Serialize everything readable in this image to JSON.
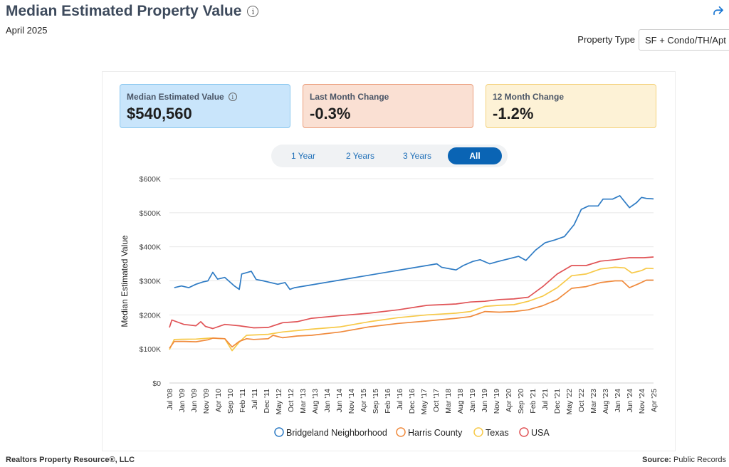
{
  "header": {
    "title": "Median Estimated Property Value",
    "subtitle": "April 2025",
    "share_icon": "share-icon"
  },
  "filter": {
    "label": "Property Type",
    "value": "SF + Condo/TH/Apt"
  },
  "cards": [
    {
      "label": "Median Estimated Value",
      "value": "$540,560",
      "color": "#c9e5fb"
    },
    {
      "label": "Last Month Change",
      "value": "-0.3%",
      "color": "#fae0d3"
    },
    {
      "label": "12 Month Change",
      "value": "-1.2%",
      "color": "#fdf2d6"
    }
  ],
  "tabs": [
    {
      "label": "1 Year",
      "active": false
    },
    {
      "label": "2 Years",
      "active": false
    },
    {
      "label": "3 Years",
      "active": false
    },
    {
      "label": "All",
      "active": true
    }
  ],
  "footer": {
    "left": "Realtors Property Resource®, LLC",
    "source_label": "Source:",
    "source_value": "Public Records"
  },
  "chart_data": {
    "type": "line",
    "ylabel": "Median Estimated Value",
    "xlabel": "",
    "ylim": [
      0,
      600000
    ],
    "y_ticks": [
      0,
      100000,
      200000,
      300000,
      400000,
      500000,
      600000
    ],
    "y_tick_labels": [
      "$0",
      "$100K",
      "$200K",
      "$300K",
      "$400K",
      "$500K",
      "$600K"
    ],
    "x_range": [
      "2008-07",
      "2025-04"
    ],
    "x_tick_labels": [
      "Jul '08",
      "Jan '09",
      "Jun '09",
      "Nov '09",
      "Apr '10",
      "Sep '10",
      "Feb '11",
      "Jul '11",
      "Dec '11",
      "May '12",
      "Oct '12",
      "Mar '13",
      "Aug '13",
      "Jan '14",
      "Jun '14",
      "Nov '14",
      "Apr '15",
      "Sep '15",
      "Feb '16",
      "Jul '16",
      "Dec '16",
      "May '17",
      "Oct '17",
      "Mar '18",
      "Aug '18",
      "Jan '19",
      "Jun '19",
      "Nov '19",
      "Apr '20",
      "Sep '20",
      "Feb '21",
      "Jul '21",
      "Dec '21",
      "May '22",
      "Oct '22",
      "Mar '23",
      "Aug '23",
      "Jan '24",
      "Jun '24",
      "Nov '24",
      "Apr '25"
    ],
    "grid": true,
    "legend_position": "bottom",
    "series": [
      {
        "name": "Bridgeland Neighborhood",
        "color": "#2e7bc4",
        "points": [
          [
            "2008-09",
            280000
          ],
          [
            "2008-12",
            285000
          ],
          [
            "2009-03",
            280000
          ],
          [
            "2009-06",
            290000
          ],
          [
            "2009-09",
            297000
          ],
          [
            "2009-11",
            300000
          ],
          [
            "2010-01",
            325000
          ],
          [
            "2010-03",
            305000
          ],
          [
            "2010-06",
            310000
          ],
          [
            "2010-10",
            285000
          ],
          [
            "2010-12",
            275000
          ],
          [
            "2011-01",
            320000
          ],
          [
            "2011-05",
            328000
          ],
          [
            "2011-07",
            304000
          ],
          [
            "2011-10",
            300000
          ],
          [
            "2012-01",
            295000
          ],
          [
            "2012-04",
            290000
          ],
          [
            "2012-07",
            295000
          ],
          [
            "2012-09",
            275000
          ],
          [
            "2012-11",
            280000
          ],
          [
            "2017-10",
            350000
          ],
          [
            "2017-12",
            340000
          ],
          [
            "2018-06",
            332000
          ],
          [
            "2018-09",
            345000
          ],
          [
            "2019-01",
            357000
          ],
          [
            "2019-04",
            362000
          ],
          [
            "2019-08",
            350000
          ],
          [
            "2019-11",
            356000
          ],
          [
            "2020-04",
            365000
          ],
          [
            "2020-08",
            372000
          ],
          [
            "2020-11",
            360000
          ],
          [
            "2021-03",
            390000
          ],
          [
            "2021-07",
            412000
          ],
          [
            "2021-11",
            420000
          ],
          [
            "2022-03",
            430000
          ],
          [
            "2022-07",
            465000
          ],
          [
            "2022-10",
            510000
          ],
          [
            "2023-01",
            520000
          ],
          [
            "2023-05",
            520000
          ],
          [
            "2023-07",
            540000
          ],
          [
            "2023-11",
            540000
          ],
          [
            "2024-02",
            550000
          ],
          [
            "2024-06",
            515000
          ],
          [
            "2024-09",
            530000
          ],
          [
            "2024-11",
            545000
          ],
          [
            "2025-01",
            542000
          ],
          [
            "2025-04",
            540560
          ]
        ]
      },
      {
        "name": "Harris County",
        "color": "#f08a3c",
        "points": [
          [
            "2008-07",
            102000
          ],
          [
            "2008-09",
            122000
          ],
          [
            "2009-01",
            122000
          ],
          [
            "2009-06",
            121000
          ],
          [
            "2009-11",
            127000
          ],
          [
            "2010-01",
            132000
          ],
          [
            "2010-06",
            130000
          ],
          [
            "2010-09",
            106000
          ],
          [
            "2010-12",
            122000
          ],
          [
            "2011-03",
            130000
          ],
          [
            "2011-06",
            128000
          ],
          [
            "2011-12",
            130000
          ],
          [
            "2012-02",
            140000
          ],
          [
            "2012-06",
            133000
          ],
          [
            "2012-12",
            138000
          ],
          [
            "2013-06",
            140000
          ],
          [
            "2014-06",
            150000
          ],
          [
            "2015-06",
            165000
          ],
          [
            "2016-06",
            175000
          ],
          [
            "2017-06",
            182000
          ],
          [
            "2018-06",
            190000
          ],
          [
            "2018-12",
            195000
          ],
          [
            "2019-06",
            210000
          ],
          [
            "2019-12",
            208000
          ],
          [
            "2020-06",
            210000
          ],
          [
            "2020-12",
            215000
          ],
          [
            "2021-06",
            227000
          ],
          [
            "2021-12",
            245000
          ],
          [
            "2022-06",
            278000
          ],
          [
            "2022-12",
            283000
          ],
          [
            "2023-06",
            295000
          ],
          [
            "2023-12",
            300000
          ],
          [
            "2024-03",
            300000
          ],
          [
            "2024-06",
            280000
          ],
          [
            "2024-10",
            292000
          ],
          [
            "2025-01",
            302000
          ],
          [
            "2025-04",
            302000
          ]
        ]
      },
      {
        "name": "Texas",
        "color": "#f7c948",
        "points": [
          [
            "2008-07",
            98000
          ],
          [
            "2008-09",
            128000
          ],
          [
            "2009-06",
            129000
          ],
          [
            "2009-12",
            132000
          ],
          [
            "2010-06",
            130000
          ],
          [
            "2010-09",
            95000
          ],
          [
            "2010-12",
            120000
          ],
          [
            "2011-03",
            140000
          ],
          [
            "2011-12",
            143000
          ],
          [
            "2012-06",
            150000
          ],
          [
            "2013-06",
            158000
          ],
          [
            "2014-06",
            165000
          ],
          [
            "2015-06",
            180000
          ],
          [
            "2016-06",
            192000
          ],
          [
            "2017-06",
            200000
          ],
          [
            "2018-06",
            205000
          ],
          [
            "2018-12",
            210000
          ],
          [
            "2019-06",
            225000
          ],
          [
            "2019-12",
            228000
          ],
          [
            "2020-06",
            230000
          ],
          [
            "2020-12",
            240000
          ],
          [
            "2021-06",
            255000
          ],
          [
            "2021-12",
            280000
          ],
          [
            "2022-06",
            315000
          ],
          [
            "2022-12",
            320000
          ],
          [
            "2023-06",
            335000
          ],
          [
            "2023-12",
            340000
          ],
          [
            "2024-04",
            338000
          ],
          [
            "2024-07",
            323000
          ],
          [
            "2024-11",
            330000
          ],
          [
            "2025-01",
            337000
          ],
          [
            "2025-04",
            336000
          ]
        ]
      },
      {
        "name": "USA",
        "color": "#e05356",
        "points": [
          [
            "2008-07",
            163000
          ],
          [
            "2008-08",
            185000
          ],
          [
            "2009-01",
            172000
          ],
          [
            "2009-06",
            168000
          ],
          [
            "2009-08",
            180000
          ],
          [
            "2009-10",
            166000
          ],
          [
            "2010-01",
            160000
          ],
          [
            "2010-06",
            172000
          ],
          [
            "2010-12",
            168000
          ],
          [
            "2011-06",
            162000
          ],
          [
            "2011-12",
            163000
          ],
          [
            "2012-06",
            177000
          ],
          [
            "2012-12",
            180000
          ],
          [
            "2013-06",
            190000
          ],
          [
            "2014-06",
            198000
          ],
          [
            "2015-06",
            205000
          ],
          [
            "2016-06",
            215000
          ],
          [
            "2017-06",
            228000
          ],
          [
            "2018-06",
            232000
          ],
          [
            "2018-12",
            238000
          ],
          [
            "2019-06",
            240000
          ],
          [
            "2019-12",
            245000
          ],
          [
            "2020-06",
            247000
          ],
          [
            "2020-12",
            252000
          ],
          [
            "2021-06",
            283000
          ],
          [
            "2021-12",
            320000
          ],
          [
            "2022-06",
            345000
          ],
          [
            "2022-12",
            345000
          ],
          [
            "2023-06",
            358000
          ],
          [
            "2023-12",
            362000
          ],
          [
            "2024-06",
            368000
          ],
          [
            "2024-12",
            368000
          ],
          [
            "2025-04",
            370000
          ]
        ]
      }
    ]
  }
}
